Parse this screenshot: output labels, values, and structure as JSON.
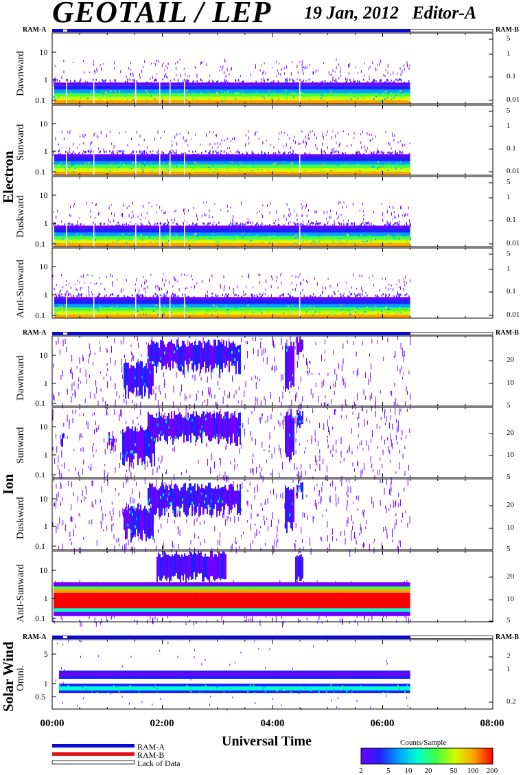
{
  "header": {
    "title": "GEOTAIL / LEP",
    "date": "19 Jan, 2012",
    "editor": "Editor-A"
  },
  "colors": {
    "ram_a": "#0a0ad0",
    "ram_b": "#e01010",
    "lack_of_data": "#ffffff",
    "colorscale": [
      "#7000ff",
      "#2020ff",
      "#00a0ff",
      "#00ffd0",
      "#40ff40",
      "#d0ff00",
      "#ffa000",
      "#ff0000"
    ]
  },
  "legend": {
    "ram_a": "RAM-A",
    "ram_b": "RAM-B",
    "lack": "Lack of Data"
  },
  "colorbar": {
    "title": "Counts/Sample",
    "ticks": [
      "2",
      "5",
      "10",
      "20",
      "50",
      "100",
      "200"
    ]
  },
  "chart_data": {
    "type": "heatmap",
    "x_axis": {
      "label": "Universal Time",
      "ticks": [
        "00:00",
        "02:00",
        "04:00",
        "06:00",
        "08:00"
      ],
      "range_hours": [
        0,
        8
      ],
      "data_end_hours": 6.5
    },
    "status_bar": {
      "labels": [
        "RAM-A",
        "RAM-B"
      ],
      "ram_a_range_hours": [
        0,
        6.5
      ],
      "lack_of_data_range_hours": [
        6.5,
        8
      ]
    },
    "groups": [
      {
        "name": "Electron",
        "left_ticks": [
          "0.1",
          "1",
          "10"
        ],
        "right_ticks": [
          "5",
          "1",
          "0.1",
          "0.01"
        ],
        "panels": [
          {
            "label": "Dawnward"
          },
          {
            "label": "Sunward"
          },
          {
            "label": "Duskward"
          },
          {
            "label": "Anti-Sunward"
          }
        ]
      },
      {
        "name": "Ion",
        "left_ticks": [
          "0.1",
          "1",
          "10"
        ],
        "right_ticks": [
          "20",
          "10",
          "5"
        ],
        "panels": [
          {
            "label": "Dawnward"
          },
          {
            "label": "Sunward"
          },
          {
            "label": "Duskward"
          },
          {
            "label": "Anti-Sunward"
          }
        ]
      },
      {
        "name": "Solar Wind",
        "left_ticks": [
          "0.5",
          "1",
          "5"
        ],
        "right_ticks": [
          "2",
          "1",
          "0.2"
        ],
        "panels": [
          {
            "label": "Omni."
          }
        ]
      }
    ]
  }
}
